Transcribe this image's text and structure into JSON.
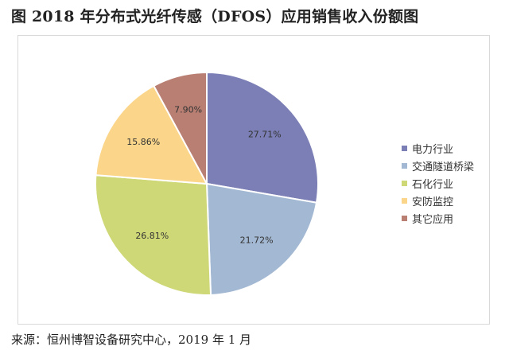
{
  "page": {
    "title": "图 2018 年分布式光纤传感（DFOS）应用销售收入份额图",
    "source": "来源：恒州博智设备研究中心，2019 年 1 月"
  },
  "chart_data": {
    "type": "pie",
    "title": "",
    "legend_position": "right",
    "categories": [
      "电力行业",
      "交通隧道桥梁",
      "石化行业",
      "安防监控",
      "其它应用"
    ],
    "values": [
      27.71,
      21.72,
      26.81,
      15.86,
      7.9
    ],
    "labels": [
      "27.71%",
      "21.72%",
      "26.81%",
      "15.86%",
      "7.90%"
    ],
    "colors": [
      "#7b7fb5",
      "#a3b8d2",
      "#cfd877",
      "#fbd68a",
      "#b97f73"
    ],
    "start_angle_deg": 0,
    "direction": "clockwise"
  }
}
